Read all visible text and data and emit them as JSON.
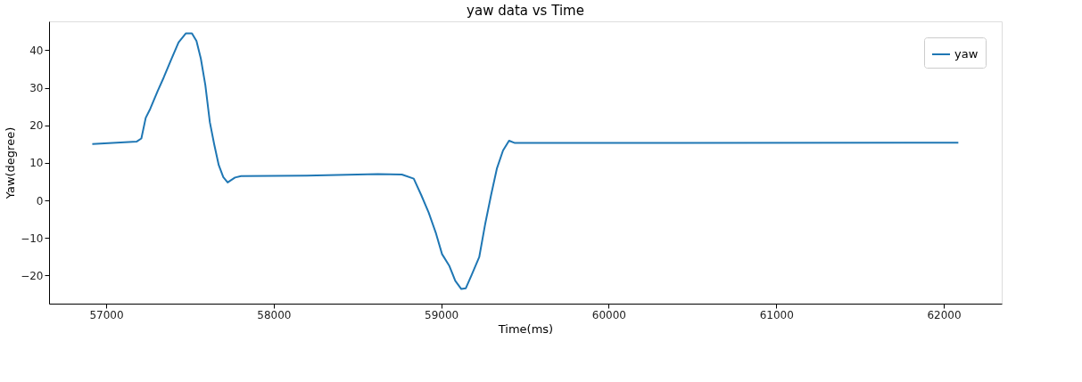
{
  "chart_data": {
    "type": "line",
    "title": "yaw data vs Time",
    "xlabel": "Time(ms)",
    "ylabel": "Yaw(degree)",
    "x": [
      56917,
      57183,
      57210,
      57236,
      57263,
      57307,
      57343,
      57387,
      57432,
      57476,
      57512,
      57539,
      57565,
      57592,
      57619,
      57645,
      57672,
      57699,
      57725,
      57769,
      57805,
      58196,
      58622,
      58765,
      58836,
      58880,
      58925,
      58969,
      59005,
      59049,
      59084,
      59120,
      59147,
      59182,
      59227,
      59262,
      59298,
      59333,
      59369,
      59405,
      59440,
      62087
    ],
    "series": [
      {
        "name": "yaw",
        "color": "#1f77b4",
        "values": [
          15.0,
          15.7,
          16.5,
          22,
          24.4,
          29.1,
          32.7,
          37.4,
          42.1,
          44.5,
          44.5,
          42.5,
          37.8,
          30.7,
          20.8,
          14.9,
          9.4,
          6.2,
          4.8,
          6.1,
          6.5,
          6.6,
          7.0,
          6.9,
          5.8,
          1.5,
          -3.2,
          -8.8,
          -14.3,
          -17.5,
          -21.4,
          -23.6,
          -23.4,
          -19.8,
          -15.1,
          -6.4,
          1.5,
          8.6,
          13.3,
          15.9,
          15.3,
          15.4
        ]
      }
    ],
    "xlim": [
      56659,
      62346
    ],
    "xticks": [
      57000,
      58000,
      59000,
      60000,
      61000,
      62000
    ],
    "ylim": [
      -27.5,
      47.7
    ],
    "yticks": [
      -20,
      -10,
      0,
      10,
      20,
      30,
      40
    ],
    "grid": false,
    "legend": "top right",
    "line_style": "solid",
    "marker": "none"
  }
}
